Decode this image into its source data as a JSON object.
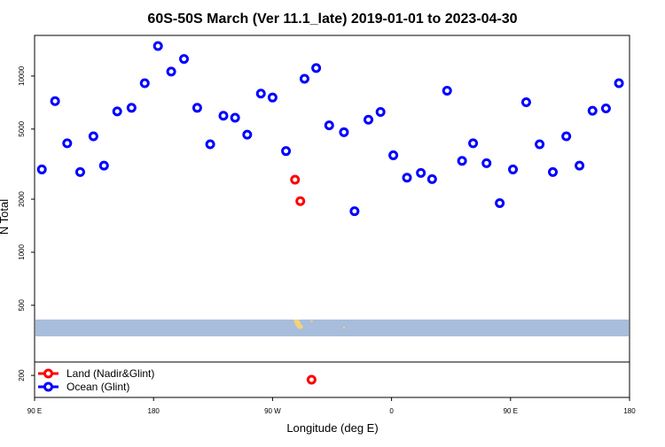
{
  "chart_data": {
    "type": "scatter",
    "title": "60S-50S March (Ver 11.1_late)   2019-01-01 to 2023-04-30",
    "xlabel": "Longitude (deg E)",
    "ylabel": "N Total",
    "y_scale": "log",
    "xlim": [
      -90,
      180
    ],
    "ylim": [
      150,
      17000
    ],
    "x_ticks": [
      {
        "value": -90,
        "label": "90 E"
      },
      {
        "value": -36,
        "label": "180"
      },
      {
        "value": 18,
        "label": "90 W"
      },
      {
        "value": 72,
        "label": "0"
      },
      {
        "value": 126,
        "label": "90 E"
      },
      {
        "value": 180,
        "label": "180"
      }
    ],
    "y_ticks": [
      {
        "value": 200,
        "label": "200"
      },
      {
        "value": 500,
        "label": "500"
      },
      {
        "value": 1000,
        "label": "1000"
      },
      {
        "value": 2000,
        "label": "2000"
      },
      {
        "value": 5000,
        "label": "5000"
      },
      {
        "value": 10000,
        "label": "10000"
      }
    ],
    "legend_position": "bottom-left",
    "grid": false,
    "colors": {
      "land": "#ff0000",
      "ocean": "#0000ff",
      "map_ocean": "#a7bddb",
      "map_land": "#f3d27a"
    },
    "series": [
      {
        "name": "Land (Nadir&Glint)",
        "color": "#ff0000",
        "points": [
          {
            "x": 28.2,
            "y": 2580
          },
          {
            "x": 30.6,
            "y": 1950
          },
          {
            "x": 35.7,
            "y": 189
          }
        ]
      },
      {
        "name": "Ocean (Glint)",
        "color": "#0000ff",
        "points": [
          {
            "x": -86.7,
            "y": 2950
          },
          {
            "x": -80.7,
            "y": 7200
          },
          {
            "x": -75.2,
            "y": 4150
          },
          {
            "x": -69.3,
            "y": 2850
          },
          {
            "x": -63.3,
            "y": 4550
          },
          {
            "x": -58.5,
            "y": 3100
          },
          {
            "x": -52.5,
            "y": 6300
          },
          {
            "x": -46.0,
            "y": 6600
          },
          {
            "x": -40.0,
            "y": 9100
          },
          {
            "x": -34.0,
            "y": 14800
          },
          {
            "x": -28.0,
            "y": 10600
          },
          {
            "x": -22.2,
            "y": 12500
          },
          {
            "x": -16.2,
            "y": 6600
          },
          {
            "x": -10.3,
            "y": 4100
          },
          {
            "x": -4.3,
            "y": 5950
          },
          {
            "x": 1.0,
            "y": 5800
          },
          {
            "x": 6.5,
            "y": 4650
          },
          {
            "x": 12.7,
            "y": 7950
          },
          {
            "x": 18.0,
            "y": 7550
          },
          {
            "x": 24.1,
            "y": 3750
          },
          {
            "x": 32.5,
            "y": 9650
          },
          {
            "x": 37.8,
            "y": 11100
          },
          {
            "x": 43.7,
            "y": 5250
          },
          {
            "x": 50.4,
            "y": 4800
          },
          {
            "x": 55.2,
            "y": 1710
          },
          {
            "x": 61.5,
            "y": 5650
          },
          {
            "x": 67.0,
            "y": 6250
          },
          {
            "x": 72.8,
            "y": 3550
          },
          {
            "x": 79.0,
            "y": 2650
          },
          {
            "x": 85.3,
            "y": 2820
          },
          {
            "x": 90.4,
            "y": 2600
          },
          {
            "x": 97.2,
            "y": 8250
          },
          {
            "x": 104.0,
            "y": 3300
          },
          {
            "x": 109.0,
            "y": 4150
          },
          {
            "x": 115.1,
            "y": 3200
          },
          {
            "x": 121.1,
            "y": 1900
          },
          {
            "x": 127.1,
            "y": 2950
          },
          {
            "x": 133.1,
            "y": 7100
          },
          {
            "x": 139.2,
            "y": 4100
          },
          {
            "x": 145.2,
            "y": 2850
          },
          {
            "x": 151.3,
            "y": 4550
          },
          {
            "x": 157.3,
            "y": 3100
          },
          {
            "x": 163.2,
            "y": 6350
          },
          {
            "x": 169.3,
            "y": 6550
          },
          {
            "x": 175.2,
            "y": 9100
          }
        ]
      }
    ]
  }
}
